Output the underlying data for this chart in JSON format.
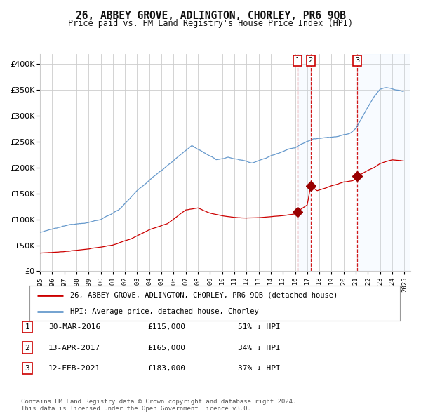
{
  "title": "26, ABBEY GROVE, ADLINGTON, CHORLEY, PR6 9QB",
  "subtitle": "Price paid vs. HM Land Registry's House Price Index (HPI)",
  "legend_line1": "26, ABBEY GROVE, ADLINGTON, CHORLEY, PR6 9QB (detached house)",
  "legend_line2": "HPI: Average price, detached house, Chorley",
  "transactions": [
    {
      "num": 1,
      "date": "30-MAR-2016",
      "price": 115000,
      "pct": "51%",
      "dir": "↓"
    },
    {
      "num": 2,
      "date": "13-APR-2017",
      "price": 165000,
      "pct": "34%",
      "dir": "↓"
    },
    {
      "num": 3,
      "date": "12-FEB-2021",
      "price": 183000,
      "pct": "37%",
      "dir": "↓"
    }
  ],
  "footnote1": "Contains HM Land Registry data © Crown copyright and database right 2024.",
  "footnote2": "This data is licensed under the Open Government Licence v3.0.",
  "hpi_color": "#6699cc",
  "price_color": "#cc0000",
  "marker_color": "#990000",
  "vline_color": "#cc0000",
  "shade_color": "#ddeeff",
  "grid_color": "#cccccc",
  "bg_color": "#ffffff",
  "ylim": [
    0,
    420000
  ],
  "yticks": [
    0,
    50000,
    100000,
    150000,
    200000,
    250000,
    300000,
    350000,
    400000
  ],
  "t1_date": 2016.21,
  "t2_date": 2017.29,
  "t3_date": 2021.12,
  "t1_price": 115000,
  "t2_price": 165000,
  "t3_price": 183000
}
